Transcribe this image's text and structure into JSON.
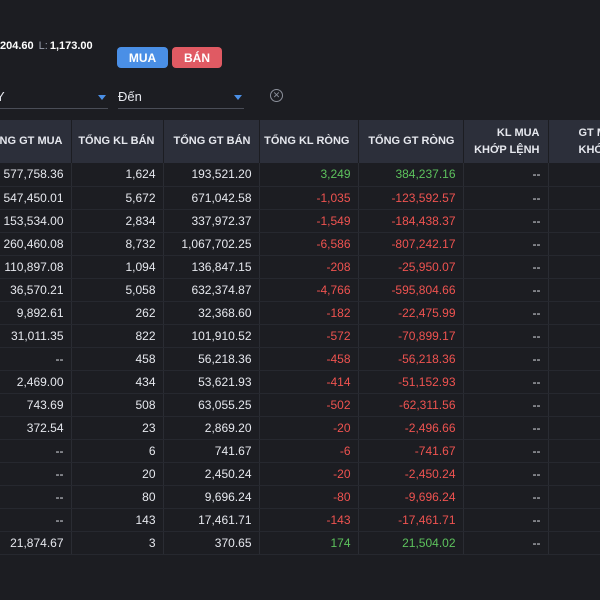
{
  "header": {
    "high_value": "204.60",
    "low_label": "L:",
    "low_value": "1,173.00"
  },
  "actions": {
    "buy_label": "MUA",
    "sell_label": "BÁN"
  },
  "filters": {
    "from_label": "Y",
    "to_label": "Đến"
  },
  "table": {
    "columns": [
      {
        "line1": "TỔNG GT MUA",
        "line2": ""
      },
      {
        "line1": "TỔNG KL BÁN",
        "line2": ""
      },
      {
        "line1": "TỔNG GT BÁN",
        "line2": ""
      },
      {
        "line1": "TỔNG KL RÒNG",
        "line2": ""
      },
      {
        "line1": "TỔNG GT RÒNG",
        "line2": ""
      },
      {
        "line1": "KL MUA",
        "line2": "KHỚP LỆNH"
      },
      {
        "line1": "GT M",
        "line2": "KHỚP LỆ"
      }
    ],
    "rows": [
      [
        "577,758.36",
        "1,624",
        "193,521.20",
        "3,249",
        "384,237.16",
        "--",
        ""
      ],
      [
        "547,450.01",
        "5,672",
        "671,042.58",
        "-1,035",
        "-123,592.57",
        "--",
        ""
      ],
      [
        "153,534.00",
        "2,834",
        "337,972.37",
        "-1,549",
        "-184,438.37",
        "--",
        ""
      ],
      [
        "260,460.08",
        "8,732",
        "1,067,702.25",
        "-6,586",
        "-807,242.17",
        "--",
        ""
      ],
      [
        "110,897.08",
        "1,094",
        "136,847.15",
        "-208",
        "-25,950.07",
        "--",
        ""
      ],
      [
        "36,570.21",
        "5,058",
        "632,374.87",
        "-4,766",
        "-595,804.66",
        "--",
        ""
      ],
      [
        "9,892.61",
        "262",
        "32,368.60",
        "-182",
        "-22,475.99",
        "--",
        ""
      ],
      [
        "31,011.35",
        "822",
        "101,910.52",
        "-572",
        "-70,899.17",
        "--",
        ""
      ],
      [
        "--",
        "458",
        "56,218.36",
        "-458",
        "-56,218.36",
        "--",
        ""
      ],
      [
        "2,469.00",
        "434",
        "53,621.93",
        "-414",
        "-51,152.93",
        "--",
        ""
      ],
      [
        "743.69",
        "508",
        "63,055.25",
        "-502",
        "-62,311.56",
        "--",
        ""
      ],
      [
        "372.54",
        "23",
        "2,869.20",
        "-20",
        "-2,496.66",
        "--",
        ""
      ],
      [
        "--",
        "6",
        "741.67",
        "-6",
        "-741.67",
        "--",
        ""
      ],
      [
        "--",
        "20",
        "2,450.24",
        "-20",
        "-2,450.24",
        "--",
        ""
      ],
      [
        "--",
        "80",
        "9,696.24",
        "-80",
        "-9,696.24",
        "--",
        ""
      ],
      [
        "--",
        "143",
        "17,461.71",
        "-143",
        "-17,461.71",
        "--",
        ""
      ],
      [
        "21,874.67",
        "3",
        "370.65",
        "174",
        "21,504.02",
        "--",
        ""
      ]
    ]
  },
  "colors": {
    "positive": "#5dc25d",
    "negative": "#ef5350",
    "buy": "#4a8fe6",
    "sell": "#e05a63"
  }
}
